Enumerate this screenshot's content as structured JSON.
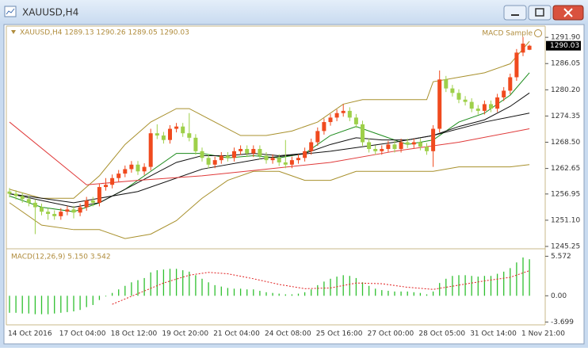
{
  "window": {
    "title": "XAUUSD,H4"
  },
  "chart_data": [
    {
      "type": "candlestick",
      "info": "XAUUSD,H4  1289.13 1290.26 1289.05 1290.03",
      "expert": "MACD Sample",
      "up_color": "#f04a1e",
      "down_color": "#9ed04a",
      "ylim": [
        1244.9,
        1294.4
      ],
      "yticks": [
        {
          "value": 1291.9,
          "label": "1291.90"
        },
        1286.05,
        {
          "value": 1280.2,
          "label": "1280.20"
        },
        1274.35,
        {
          "value": 1268.5,
          "label": "1268.50"
        },
        1262.65,
        1256.95,
        {
          "value": 1251.1,
          "label": "1251.10"
        },
        1245.25
      ],
      "last_price": 1290.03,
      "categories": [
        "14 Oct 2016",
        null,
        null,
        null,
        null,
        null,
        null,
        null,
        "17 Oct 04:00",
        null,
        null,
        null,
        null,
        null,
        null,
        null,
        "18 Oct 12:00",
        null,
        null,
        null,
        null,
        null,
        null,
        null,
        "19 Oct 20:00",
        null,
        null,
        null,
        null,
        null,
        null,
        null,
        "21 Oct 04:00",
        null,
        null,
        null,
        null,
        null,
        null,
        null,
        "24 Oct 08:00",
        null,
        null,
        null,
        null,
        null,
        null,
        null,
        "25 Oct 16:00",
        null,
        null,
        null,
        null,
        null,
        null,
        null,
        "27 Oct 00:00",
        null,
        null,
        null,
        null,
        null,
        null,
        null,
        "28 Oct 05:00",
        null,
        null,
        null,
        null,
        null,
        null,
        null,
        "31 Oct 14:00",
        null,
        null,
        null,
        null,
        null,
        null,
        null,
        "1 Nov 21:00",
        null
      ],
      "open": [
        1257.5,
        1257.0,
        1256.5,
        1255.8,
        1255.0,
        1254.0,
        1253.0,
        1252.5,
        1252.0,
        1253.0,
        1253.5,
        1252.8,
        1254.0,
        1255.5,
        1255.0,
        1258.5,
        1259.0,
        1260.5,
        1261.5,
        1262.5,
        1263.5,
        1262.0,
        1263.0,
        1270.5,
        1270.0,
        1269.0,
        1271.5,
        1272.0,
        1270.5,
        1269.5,
        1266.5,
        1265.0,
        1263.5,
        1264.5,
        1265.5,
        1265.0,
        1266.5,
        1267.0,
        1266.0,
        1267.0,
        1265.5,
        1264.5,
        1265.0,
        1264.0,
        1263.5,
        1264.5,
        1265.0,
        1266.5,
        1268.5,
        1271.0,
        1273.0,
        1274.0,
        1275.0,
        1275.5,
        1274.0,
        1272.5,
        1268.5,
        1267.0,
        1266.5,
        1267.0,
        1268.0,
        1267.0,
        1268.5,
        1268.0,
        1268.5,
        1267.5,
        1266.5,
        1271.5,
        1282.5,
        1280.5,
        1279.5,
        1278.0,
        1277.5,
        1276.0,
        1275.5,
        1277.0,
        1276.0,
        1278.5,
        1280.0,
        1283.0,
        1288.5,
        1289.13
      ],
      "high": [
        1258.3,
        1257.8,
        1257.3,
        1256.6,
        1255.8,
        1254.8,
        1253.8,
        1253.3,
        1253.8,
        1254.3,
        1254.3,
        1254.8,
        1256.3,
        1256.3,
        1259.3,
        1260.5,
        1261.3,
        1262.3,
        1263.3,
        1264.3,
        1264.3,
        1263.8,
        1271.5,
        1272.5,
        1270.8,
        1272.3,
        1272.8,
        1272.8,
        1275.0,
        1270.3,
        1267.3,
        1265.8,
        1265.3,
        1266.3,
        1266.3,
        1267.3,
        1267.8,
        1267.8,
        1267.8,
        1267.8,
        1266.3,
        1265.8,
        1265.8,
        1269.0,
        1265.3,
        1265.8,
        1267.3,
        1269.3,
        1271.8,
        1273.8,
        1274.8,
        1275.8,
        1277.0,
        1276.3,
        1274.8,
        1273.3,
        1269.3,
        1267.8,
        1267.8,
        1268.8,
        1268.8,
        1269.3,
        1269.3,
        1269.3,
        1269.3,
        1268.3,
        1272.3,
        1284.5,
        1283.3,
        1281.3,
        1280.3,
        1278.8,
        1278.3,
        1276.8,
        1277.8,
        1277.8,
        1279.3,
        1280.8,
        1283.8,
        1289.3,
        1292.0,
        1290.26
      ],
      "low": [
        1256.2,
        1255.7,
        1255.0,
        1254.2,
        1248.0,
        1252.2,
        1251.2,
        1251.2,
        1251.2,
        1252.2,
        1251.5,
        1252.0,
        1253.2,
        1254.2,
        1254.2,
        1257.7,
        1258.2,
        1259.7,
        1260.7,
        1261.7,
        1261.2,
        1261.2,
        1262.2,
        1269.2,
        1268.2,
        1268.2,
        1270.7,
        1269.7,
        1268.7,
        1265.7,
        1264.2,
        1262.7,
        1262.7,
        1263.7,
        1264.2,
        1264.2,
        1265.7,
        1265.2,
        1265.2,
        1264.7,
        1263.7,
        1263.7,
        1263.2,
        1262.7,
        1262.7,
        1263.7,
        1264.2,
        1265.7,
        1267.7,
        1270.2,
        1272.2,
        1273.2,
        1274.2,
        1273.2,
        1271.7,
        1267.7,
        1266.2,
        1265.7,
        1265.7,
        1266.2,
        1266.2,
        1266.2,
        1267.2,
        1267.2,
        1266.7,
        1265.7,
        1263.0,
        1270.7,
        1279.7,
        1278.7,
        1277.2,
        1276.7,
        1275.2,
        1274.7,
        1274.7,
        1275.2,
        1275.2,
        1277.7,
        1279.2,
        1282.2,
        1287.7,
        1289.05
      ],
      "close": [
        1257.0,
        1256.5,
        1255.8,
        1255.0,
        1254.0,
        1253.0,
        1252.5,
        1252.0,
        1253.0,
        1253.5,
        1252.8,
        1254.0,
        1255.5,
        1255.0,
        1258.5,
        1259.0,
        1260.5,
        1261.5,
        1262.5,
        1263.5,
        1262.0,
        1263.0,
        1270.5,
        1270.0,
        1269.0,
        1271.5,
        1272.0,
        1270.5,
        1269.5,
        1266.5,
        1265.0,
        1263.5,
        1264.5,
        1265.5,
        1265.0,
        1266.5,
        1267.0,
        1266.0,
        1267.0,
        1265.5,
        1264.5,
        1265.0,
        1264.0,
        1263.5,
        1264.5,
        1265.0,
        1266.5,
        1268.5,
        1271.0,
        1273.0,
        1274.0,
        1275.0,
        1275.5,
        1274.0,
        1272.5,
        1268.5,
        1267.0,
        1266.5,
        1267.0,
        1268.0,
        1267.0,
        1268.5,
        1268.0,
        1268.5,
        1267.5,
        1266.5,
        1271.5,
        1282.5,
        1280.5,
        1279.5,
        1278.0,
        1277.5,
        1276.0,
        1275.5,
        1277.0,
        1276.0,
        1278.5,
        1280.0,
        1283.0,
        1288.5,
        1290.5,
        1290.03
      ],
      "lines": [
        {
          "color": "#a8902c",
          "x": [
            0,
            5,
            10,
            14,
            18,
            22,
            26,
            28,
            32,
            36,
            40,
            44,
            48,
            52,
            55,
            60,
            65,
            66,
            70,
            74,
            78,
            81
          ],
          "values": [
            1258,
            1256,
            1256,
            1261,
            1268,
            1273,
            1276,
            1276,
            1273,
            1270,
            1270,
            1271,
            1273,
            1277,
            1278,
            1278,
            1278,
            1282,
            1283,
            1284,
            1286,
            1291
          ]
        },
        {
          "color": "#a8902c",
          "x": [
            0,
            5,
            10,
            14,
            18,
            22,
            26,
            30,
            34,
            38,
            42,
            46,
            50,
            54,
            58,
            62,
            66,
            70,
            74,
            78,
            81
          ],
          "values": [
            1255,
            1250,
            1249,
            1249,
            1247,
            1248,
            1251,
            1256,
            1260,
            1262,
            1262,
            1260,
            1260,
            1262,
            1262,
            1262,
            1262,
            1263,
            1263,
            1263,
            1263.5
          ]
        },
        {
          "color": "#1a8a1a",
          "x": [
            0,
            5,
            10,
            14,
            18,
            22,
            26,
            30,
            34,
            38,
            42,
            46,
            50,
            54,
            58,
            62,
            66,
            70,
            74,
            78,
            81
          ],
          "values": [
            1256.5,
            1254,
            1253,
            1255,
            1258,
            1262,
            1266,
            1266,
            1265,
            1265.5,
            1265,
            1266,
            1270,
            1272,
            1270,
            1268,
            1269,
            1273,
            1275,
            1279,
            1284
          ]
        },
        {
          "color": "#111111",
          "x": [
            0,
            5,
            10,
            14,
            18,
            22,
            26,
            30,
            34,
            38,
            42,
            46,
            50,
            54,
            58,
            62,
            66,
            70,
            74,
            78,
            81
          ],
          "values": [
            1257,
            1255.5,
            1254,
            1255,
            1258,
            1261,
            1264,
            1265.5,
            1265.5,
            1266,
            1265.5,
            1266,
            1268,
            1269.5,
            1269,
            1269,
            1270,
            1272,
            1273.5,
            1276.5,
            1279.5
          ]
        },
        {
          "color": "#111111",
          "x": [
            0,
            10,
            20,
            30,
            40,
            50,
            60,
            66,
            74,
            81
          ],
          "values": [
            1257,
            1255,
            1257.5,
            1262.5,
            1265,
            1266.5,
            1268.5,
            1270,
            1273,
            1275
          ]
        },
        {
          "color": "#e03a3a",
          "x": [
            0,
            12,
            20,
            30,
            40,
            50,
            60,
            70,
            81
          ],
          "values": [
            1273,
            1259,
            1260,
            1261,
            1262.5,
            1264,
            1266.5,
            1268.5,
            1271.5
          ]
        }
      ]
    },
    {
      "type": "bar",
      "title": "MACD(12,26,9) 5.150 3.542",
      "color": "#2fc02f",
      "ylim": [
        -4.1,
        6.4
      ],
      "yticks": [
        5.572,
        {
          "value": 0,
          "label": "0.00"
        },
        -3.699
      ],
      "values": [
        -2.4,
        -2.4,
        -2.5,
        -2.5,
        -2.6,
        -2.6,
        -2.6,
        -2.5,
        -2.4,
        -2.3,
        -2.2,
        -2.0,
        -1.6,
        -1.3,
        -0.6,
        -0.1,
        0.4,
        0.9,
        1.4,
        1.9,
        2.2,
        2.5,
        3.3,
        3.6,
        3.7,
        3.8,
        3.8,
        3.6,
        3.4,
        2.9,
        2.4,
        1.9,
        1.5,
        1.3,
        1.1,
        1.0,
        1.0,
        0.9,
        0.9,
        0.7,
        0.5,
        0.4,
        0.3,
        0.2,
        0.2,
        0.3,
        0.5,
        0.9,
        1.5,
        2.0,
        2.4,
        2.7,
        2.9,
        2.8,
        2.5,
        1.9,
        1.4,
        1.0,
        0.8,
        0.7,
        0.6,
        0.6,
        0.6,
        0.5,
        0.4,
        0.2,
        0.6,
        1.8,
        2.4,
        2.8,
        2.9,
        2.9,
        2.8,
        2.7,
        2.8,
        2.8,
        3.1,
        3.4,
        3.9,
        4.7,
        5.4,
        5.15
      ],
      "signal": {
        "color": "#e02020",
        "x": [
          16,
          20,
          24,
          28,
          31,
          34,
          38,
          42,
          46,
          50,
          54,
          58,
          62,
          66,
          70,
          74,
          78,
          81
        ],
        "values": [
          -1.2,
          0.3,
          1.8,
          2.9,
          3.3,
          3.1,
          2.4,
          1.6,
          1.0,
          1.1,
          1.8,
          1.7,
          1.2,
          0.9,
          1.5,
          2.1,
          2.6,
          3.542
        ]
      }
    }
  ]
}
